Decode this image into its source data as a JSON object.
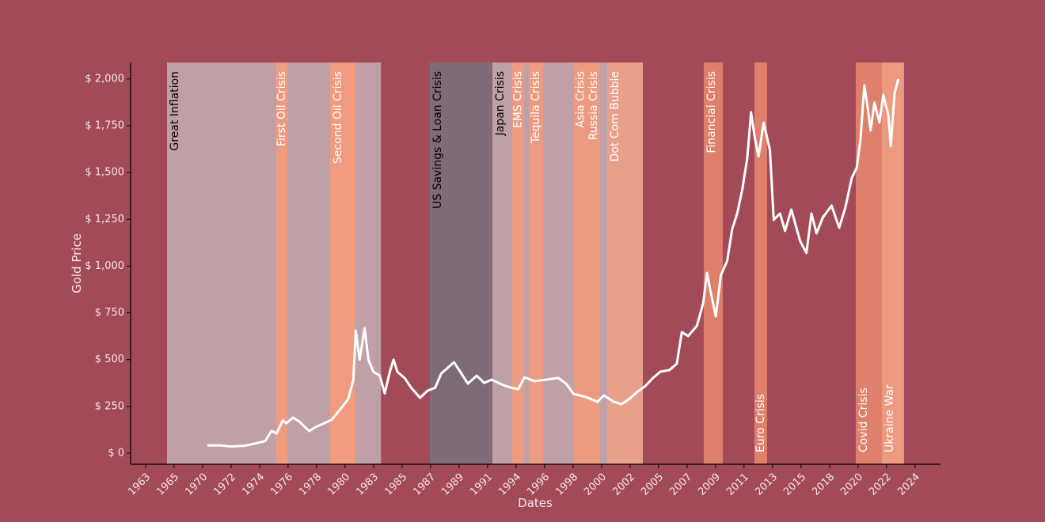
{
  "chart_data": {
    "type": "line",
    "background": "#a24a58",
    "axis_color": "#000000",
    "text_color": "#f3e6e8",
    "xlabel": "Dates",
    "ylabel": "Gold Price",
    "xlim": [
      1962.11,
      2026.45
    ],
    "ylim": [
      -59,
      2088
    ],
    "xticks": [
      {
        "value": 1963.3,
        "label": "1963"
      },
      {
        "value": 1965.56,
        "label": "1965"
      },
      {
        "value": 1967.83,
        "label": "1970"
      },
      {
        "value": 1970.09,
        "label": "1972"
      },
      {
        "value": 1972.36,
        "label": "1974"
      },
      {
        "value": 1974.62,
        "label": "1976"
      },
      {
        "value": 1976.88,
        "label": "1978"
      },
      {
        "value": 1979.15,
        "label": "1980"
      },
      {
        "value": 1981.41,
        "label": "1983"
      },
      {
        "value": 1983.68,
        "label": "1985"
      },
      {
        "value": 1985.94,
        "label": "1987"
      },
      {
        "value": 1988.2,
        "label": "1989"
      },
      {
        "value": 1990.47,
        "label": "1991"
      },
      {
        "value": 1992.73,
        "label": "1994"
      },
      {
        "value": 1995.0,
        "label": "1996"
      },
      {
        "value": 1997.26,
        "label": "1998"
      },
      {
        "value": 1999.52,
        "label": "2000"
      },
      {
        "value": 2001.79,
        "label": "2002"
      },
      {
        "value": 2004.05,
        "label": "2005"
      },
      {
        "value": 2006.32,
        "label": "2007"
      },
      {
        "value": 2008.58,
        "label": "2009"
      },
      {
        "value": 2010.84,
        "label": "2011"
      },
      {
        "value": 2013.11,
        "label": "2013"
      },
      {
        "value": 2015.37,
        "label": "2015"
      },
      {
        "value": 2017.64,
        "label": "2018"
      },
      {
        "value": 2019.9,
        "label": "2020"
      },
      {
        "value": 2022.16,
        "label": "2022"
      },
      {
        "value": 2024.43,
        "label": "2024"
      }
    ],
    "yticks": [
      {
        "value": 0,
        "label": "$ 0"
      },
      {
        "value": 250,
        "label": "$ 250"
      },
      {
        "value": 500,
        "label": "$ 500"
      },
      {
        "value": 750,
        "label": "$ 750"
      },
      {
        "value": 1000,
        "label": "$ 1,000"
      },
      {
        "value": 1250,
        "label": "$ 1,250"
      },
      {
        "value": 1500,
        "label": "$ 1,500"
      },
      {
        "value": 1750,
        "label": "$ 1,750"
      },
      {
        "value": 2000,
        "label": "$ 2,000"
      }
    ],
    "crises": [
      {
        "name": "Great Inflation",
        "start": 1965.0,
        "end": 1982.0,
        "color": "#bfa0a6",
        "label_color": "#000000",
        "label_pos": "top"
      },
      {
        "name": "First Oil Crisis",
        "start": 1973.68,
        "end": 1974.56,
        "color": "#f09b80",
        "label_color": "#ffffff",
        "label_pos": "top"
      },
      {
        "name": "Second Oil Crisis",
        "start": 1977.96,
        "end": 1979.97,
        "color": "#f09b80",
        "label_color": "#ffffff",
        "label_pos": "top"
      },
      {
        "name": "US Savings & Loan Crisis",
        "start": 1985.88,
        "end": 1990.85,
        "color": "#7f6a78",
        "label_color": "#000000",
        "label_pos": "top"
      },
      {
        "name": "Japan Crisis",
        "start": 1990.85,
        "end": 2002.8,
        "color": "#bfa0a6",
        "label_color": "#000000",
        "label_pos": "top"
      },
      {
        "name": "EMS Crisis",
        "start": 1992.42,
        "end": 1993.36,
        "color": "#ec9b80",
        "label_color": "#ffffff",
        "label_pos": "top"
      },
      {
        "name": "Tequila Crisis",
        "start": 1993.74,
        "end": 1994.87,
        "color": "#ec9b80",
        "label_color": "#ffffff",
        "label_pos": "top"
      },
      {
        "name": "Asia Crisis",
        "start": 1997.33,
        "end": 1998.4,
        "color": "#ec9b80",
        "label_color": "#ffffff",
        "label_pos": "top"
      },
      {
        "name": "Russia Crisis",
        "start": 1998.4,
        "end": 1999.4,
        "color": "#ec9b80",
        "label_color": "#ffffff",
        "label_pos": "top"
      },
      {
        "name": "Dot Com Bubble",
        "start": 1999.97,
        "end": 2002.8,
        "color": "#e8a08a",
        "label_color": "#ffffff",
        "label_pos": "top"
      },
      {
        "name": "Financial Crisis",
        "start": 2007.64,
        "end": 2009.15,
        "color": "#de806b",
        "label_color": "#ffffff",
        "label_pos": "top"
      },
      {
        "name": "Euro Crisis",
        "start": 2011.67,
        "end": 2012.67,
        "color": "#de806b",
        "label_color": "#ffffff",
        "label_pos": "bottom"
      },
      {
        "name": "Covid Crisis",
        "start": 2019.72,
        "end": 2022.3,
        "color": "#de806b",
        "label_color": "#ffffff",
        "label_pos": "bottom"
      },
      {
        "name": "Ukraine War",
        "start": 2021.8,
        "end": 2023.55,
        "color": "#ee9a80",
        "label_color": "#ffffff",
        "label_pos": "bottom"
      }
    ],
    "series": [
      {
        "name": "Gold Price",
        "color": "#ffffff",
        "x": [
          1968.2,
          1969.3,
          1970.0,
          1971.2,
          1972.2,
          1972.8,
          1973.3,
          1973.7,
          1974.2,
          1974.5,
          1975.0,
          1975.5,
          1976.3,
          1976.8,
          1977.5,
          1978.1,
          1978.8,
          1979.4,
          1979.8,
          1980.0,
          1980.3,
          1980.7,
          1981.0,
          1981.4,
          1981.9,
          1982.3,
          1982.7,
          1983.0,
          1983.3,
          1983.9,
          1984.4,
          1985.1,
          1985.7,
          1986.3,
          1986.8,
          1987.3,
          1987.8,
          1988.3,
          1988.9,
          1989.6,
          1990.2,
          1990.8,
          1991.7,
          1992.3,
          1992.9,
          1993.4,
          1994.2,
          1995.1,
          1996.1,
          1996.7,
          1997.3,
          1998.3,
          1999.2,
          1999.7,
          2000.5,
          2001.1,
          2001.7,
          2002.4,
          2003.0,
          2003.6,
          2004.2,
          2004.9,
          2005.5,
          2005.9,
          2006.4,
          2007.1,
          2007.6,
          2007.9,
          2008.2,
          2008.6,
          2009.0,
          2009.5,
          2009.9,
          2010.3,
          2010.7,
          2011.1,
          2011.4,
          2011.7,
          2012.0,
          2012.4,
          2012.9,
          2013.2,
          2013.7,
          2014.1,
          2014.6,
          2015.3,
          2015.8,
          2016.2,
          2016.6,
          2017.1,
          2017.8,
          2018.4,
          2018.9,
          2019.4,
          2019.8,
          2020.1,
          2020.4,
          2020.7,
          2020.9,
          2021.2,
          2021.6,
          2021.9,
          2022.3,
          2022.5,
          2022.8,
          2023.1
        ],
        "values": [
          42,
          42,
          36,
          40,
          55,
          65,
          120,
          105,
          175,
          160,
          190,
          170,
          118,
          140,
          160,
          180,
          237,
          290,
          390,
          655,
          500,
          668,
          500,
          435,
          415,
          320,
          435,
          500,
          435,
          400,
          350,
          296,
          334,
          350,
          427,
          456,
          486,
          435,
          372,
          414,
          376,
          393,
          364,
          351,
          342,
          406,
          385,
          393,
          402,
          372,
          317,
          300,
          275,
          309,
          275,
          262,
          288,
          330,
          359,
          402,
          436,
          444,
          478,
          647,
          626,
          681,
          803,
          964,
          858,
          731,
          951,
          1027,
          1197,
          1281,
          1408,
          1577,
          1822,
          1683,
          1586,
          1767,
          1619,
          1247,
          1281,
          1188,
          1302,
          1133,
          1070,
          1281,
          1175,
          1260,
          1323,
          1205,
          1315,
          1471,
          1526,
          1683,
          1966,
          1831,
          1725,
          1873,
          1767,
          1915,
          1810,
          1641,
          1924,
          2000
        ]
      }
    ]
  }
}
